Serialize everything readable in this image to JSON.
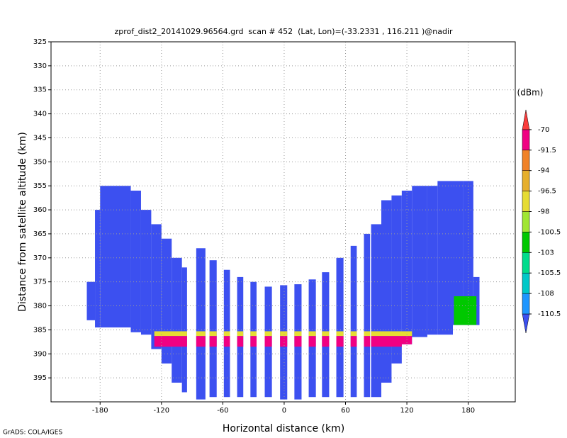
{
  "chart_data": {
    "type": "heatmap",
    "title": "zprof_dist2_20141029.96564.grd  scan # 452  (Lat, Lon)=(-33.2331 , 116.211 )@nadir",
    "x_label": "Horizontal distance (km)",
    "y_label": "Distance from satellite altitude (km)",
    "footer": "GrADS: COLA/IGES",
    "colorbar_unit": "(dBm)",
    "xlim": [
      -228,
      226
    ],
    "ylim": [
      325,
      400
    ],
    "y_inverted": true,
    "xticks": [
      -180,
      -120,
      -60,
      0,
      60,
      120,
      180
    ],
    "yticks": [
      325,
      330,
      335,
      340,
      345,
      350,
      355,
      360,
      365,
      370,
      375,
      380,
      385,
      390,
      395
    ],
    "grid": true,
    "levels": [
      -110.5,
      -108,
      -105.5,
      -103,
      -100.5,
      -98,
      -96.5,
      -94,
      -91.5,
      -70
    ],
    "level_colors": [
      "#3c50f0",
      "#1e96ff",
      "#00c8c8",
      "#00dc8c",
      "#00c800",
      "#a0e632",
      "#e6dc32",
      "#e6af2d",
      "#f08228",
      "#f00082",
      "#fa3c3c"
    ],
    "strip_value": -112,
    "strips": {
      "x0": [
        -193,
        -185,
        -180,
        -150,
        -140,
        -130,
        -120,
        -110,
        -100,
        -86,
        -73,
        -59,
        -46,
        -33,
        -19,
        -4,
        10,
        24,
        37,
        51,
        65,
        78,
        85,
        95,
        105,
        115,
        125,
        140,
        150,
        165,
        175,
        185
      ],
      "x1": [
        -185,
        -180,
        -150,
        -140,
        -130,
        -120,
        -110,
        -100,
        -95,
        -77,
        -66,
        -53,
        -40,
        -27,
        -12,
        3,
        17,
        31,
        44,
        58,
        71,
        84,
        95,
        105,
        115,
        125,
        140,
        150,
        165,
        175,
        185,
        191
      ],
      "top": [
        375,
        360,
        355,
        356,
        360,
        363,
        366,
        370,
        372,
        368,
        370.5,
        372.5,
        374,
        375,
        376,
        375.7,
        375.5,
        374.5,
        373,
        370,
        367.5,
        365,
        363,
        358,
        357,
        356,
        355,
        355,
        354,
        354,
        354,
        374
      ],
      "bottom": [
        383,
        384.5,
        384.5,
        385.5,
        386,
        389,
        392,
        396,
        398,
        399.5,
        399,
        399,
        399,
        399,
        399,
        399.5,
        399.5,
        399,
        399,
        399,
        399,
        399,
        399,
        396,
        392,
        388,
        386.5,
        386,
        386,
        384,
        384,
        384
      ]
    },
    "bands": [
      {
        "x0": -127,
        "x1": 125,
        "top": 385.3,
        "bottom": 386.3,
        "value": -97
      },
      {
        "x0": -127,
        "x1": 125,
        "top": 386.3,
        "bottom": 388.5,
        "value": -85
      },
      {
        "x0": 166,
        "x1": 188,
        "top": 378,
        "bottom": 384,
        "value": -102
      }
    ]
  }
}
